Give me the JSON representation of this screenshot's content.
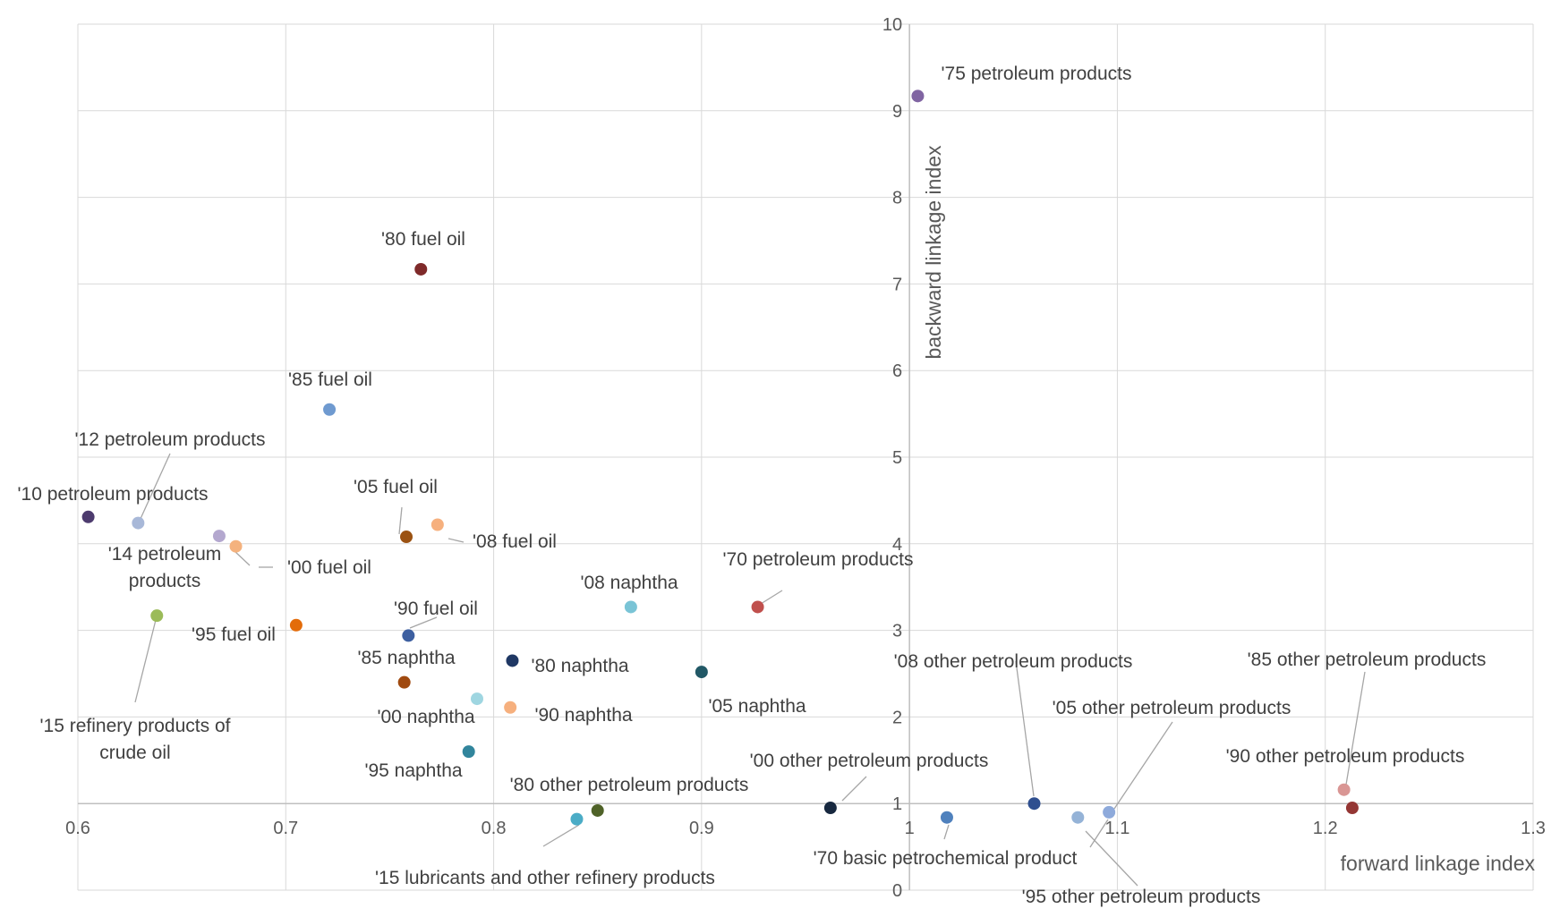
{
  "chart_data": {
    "type": "scatter",
    "xlabel": "forward linkage index",
    "ylabel": "backward linkage index",
    "xlim": [
      0.6,
      1.3
    ],
    "ylim": [
      0,
      10
    ],
    "x_ticks": [
      "0.6",
      "0.7",
      "0.8",
      "0.9",
      "1",
      "1.1",
      "1.2",
      "1.3"
    ],
    "y_ticks": [
      "0",
      "1",
      "2",
      "3",
      "4",
      "5",
      "6",
      "7",
      "8",
      "9",
      "10"
    ],
    "grid": true,
    "axes_cross_at": {
      "x": 1,
      "y": 1
    },
    "points": [
      {
        "label": "'75 petroleum products",
        "x": 1.004,
        "y": 9.17,
        "color": "#8064a2"
      },
      {
        "label": "'80 fuel oil",
        "x": 0.765,
        "y": 7.17,
        "color": "#7f2a2a"
      },
      {
        "label": "'85 fuel oil",
        "x": 0.721,
        "y": 5.55,
        "color": "#6f9ad0"
      },
      {
        "label": "'12 petroleum products",
        "x": 0.629,
        "y": 4.24,
        "color": "#a8b8d8"
      },
      {
        "label": "'10 petroleum products",
        "x": 0.605,
        "y": 4.31,
        "color": "#4d3b6e"
      },
      {
        "label": "'14 petroleum products",
        "x": 0.668,
        "y": 4.09,
        "color": "#b4a8cf"
      },
      {
        "label": "'00 fuel oil",
        "x": 0.676,
        "y": 3.97,
        "color": "#f4b27e"
      },
      {
        "label": "'05 fuel oil",
        "x": 0.758,
        "y": 4.08,
        "color": "#9b5212"
      },
      {
        "label": "'08 fuel oil",
        "x": 0.773,
        "y": 4.22,
        "color": "#f6b07e"
      },
      {
        "label": "'15 refinery products of crude oil",
        "x": 0.638,
        "y": 3.17,
        "color": "#9bbb59"
      },
      {
        "label": "'95 fuel oil",
        "x": 0.705,
        "y": 3.06,
        "color": "#e36c0a"
      },
      {
        "label": "'90 fuel oil",
        "x": 0.759,
        "y": 2.94,
        "color": "#3d5fa0"
      },
      {
        "label": "'85 naphtha",
        "x": 0.757,
        "y": 2.4,
        "color": "#a04a10"
      },
      {
        "label": "'80 naphtha",
        "x": 0.809,
        "y": 2.65,
        "color": "#1f3864"
      },
      {
        "label": "'00 naphtha",
        "x": 0.792,
        "y": 2.21,
        "color": "#9fd6e1"
      },
      {
        "label": "'90 naphtha",
        "x": 0.808,
        "y": 2.11,
        "color": "#f6b07e"
      },
      {
        "label": "'95 naphtha",
        "x": 0.788,
        "y": 1.6,
        "color": "#31859c"
      },
      {
        "label": "'08 naphtha",
        "x": 0.866,
        "y": 3.27,
        "color": "#7ac4d6"
      },
      {
        "label": "'70 petroleum products",
        "x": 0.927,
        "y": 3.27,
        "color": "#c0504d"
      },
      {
        "label": "'05 naphtha",
        "x": 0.9,
        "y": 2.52,
        "color": "#215866"
      },
      {
        "label": "'80 other petroleum products",
        "x": 0.85,
        "y": 0.92,
        "color": "#4f6228"
      },
      {
        "label": "'15 lubricants and other refinery products",
        "x": 0.84,
        "y": 0.82,
        "color": "#4bacc6"
      },
      {
        "label": "'00 other petroleum products",
        "x": 0.962,
        "y": 0.95,
        "color": "#17283f"
      },
      {
        "label": "'70 basic petrochemical product",
        "x": 1.018,
        "y": 0.84,
        "color": "#4f81bd"
      },
      {
        "label": "'08 other petroleum products",
        "x": 1.06,
        "y": 1.0,
        "color": "#2f4f8f"
      },
      {
        "label": "'95 other petroleum products",
        "x": 1.081,
        "y": 0.84,
        "color": "#95b3d7"
      },
      {
        "label": "'05 other petroleum products",
        "x": 1.096,
        "y": 0.9,
        "color": "#8eaadb"
      },
      {
        "label": "'85 other petroleum products",
        "x": 1.213,
        "y": 0.95,
        "color": "#943634"
      },
      {
        "label": "'90 other petroleum products",
        "x": 1.209,
        "y": 1.16,
        "color": "#d99694"
      }
    ],
    "labels": [
      {
        "text": "'75 petroleum products"
      },
      {
        "text": "'80 fuel oil"
      },
      {
        "text": "'85 fuel oil"
      },
      {
        "text": "'12 petroleum products"
      },
      {
        "text": "'10 petroleum products"
      },
      {
        "text": "'05 fuel oil"
      },
      {
        "text": "'08 fuel oil"
      },
      {
        "text": "'14 petroleum"
      },
      {
        "text": "products"
      },
      {
        "text": "'00 fuel oil"
      },
      {
        "text": "'70 petroleum products"
      },
      {
        "text": "'08 naphtha"
      },
      {
        "text": "'90 fuel oil"
      },
      {
        "text": "'95 fuel oil"
      },
      {
        "text": "'85 naphtha"
      },
      {
        "text": "'80 naphtha"
      },
      {
        "text": "'05 naphtha"
      },
      {
        "text": "'00 naphtha"
      },
      {
        "text": "'90 naphtha"
      },
      {
        "text": "'15 refinery products of"
      },
      {
        "text": "crude oil"
      },
      {
        "text": "'95 naphtha"
      },
      {
        "text": "'80 other petroleum products"
      },
      {
        "text": "'00 other petroleum products"
      },
      {
        "text": "'08 other petroleum products"
      },
      {
        "text": "'85 other petroleum products"
      },
      {
        "text": "'05 other petroleum products"
      },
      {
        "text": "'90 other petroleum products"
      },
      {
        "text": "'70 basic petrochemical product"
      },
      {
        "text": "'15 lubricants and other refinery products"
      },
      {
        "text": "'95 other petroleum products"
      }
    ]
  }
}
